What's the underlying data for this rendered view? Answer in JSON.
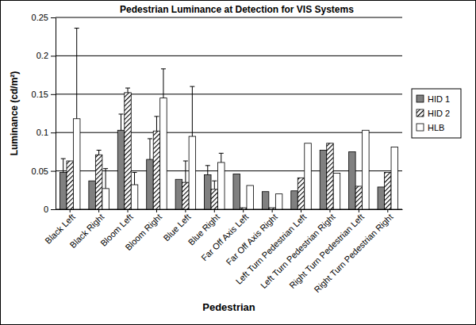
{
  "chart_data": {
    "type": "bar",
    "title": "Pedestrian Luminance at Detection for VIS Systems",
    "x_label": "Pedestrian",
    "y_label": "Luminance (cd/m²)",
    "categories": [
      "Black Left",
      "Black Right",
      "Bloom Left",
      "Bloom Right",
      "Blue Left",
      "Blue Right",
      "Far Off Axis Left",
      "Far Off Axis Right",
      "Left Turn Pedestrian Left",
      "Left Turn Pedestrian Right",
      "Right Turn Pedestrian Left",
      "Right Turn Pedestrian Right"
    ],
    "series": [
      {
        "name": "HID 1",
        "color": "#808080",
        "values": [
          0.048,
          0.037,
          0.103,
          0.065,
          0.039,
          0.045,
          0.046,
          0.023,
          0.024,
          0.077,
          0.075,
          0.029
        ],
        "errors": [
          0.018,
          null,
          0.021,
          0.027,
          null,
          0.012,
          null,
          null,
          null,
          null,
          null,
          null
        ]
      },
      {
        "name": "HID 2",
        "color": "#000000",
        "marker": "hatch",
        "values": [
          0.063,
          0.071,
          0.152,
          0.102,
          0.035,
          0.026,
          0.002,
          0.002,
          0.041,
          0.086,
          0.03,
          0.048
        ],
        "errors": [
          null,
          0.006,
          0.006,
          0.019,
          0.028,
          0.011,
          null,
          null,
          null,
          null,
          null,
          null
        ]
      },
      {
        "name": "HLB",
        "color": "#ffffff",
        "values": [
          0.118,
          0.027,
          0.032,
          0.145,
          0.095,
          0.061,
          0.031,
          0.02,
          0.086,
          0.047,
          0.103,
          0.081
        ],
        "errors": [
          0.118,
          0.026,
          0.016,
          0.038,
          0.065,
          0.012,
          null,
          null,
          null,
          null,
          null,
          null
        ]
      }
    ],
    "ylim": [
      0,
      0.25
    ],
    "yticks": [
      0,
      0.05,
      0.1,
      0.15,
      0.2,
      0.25
    ],
    "grid": true,
    "legend": "right"
  }
}
